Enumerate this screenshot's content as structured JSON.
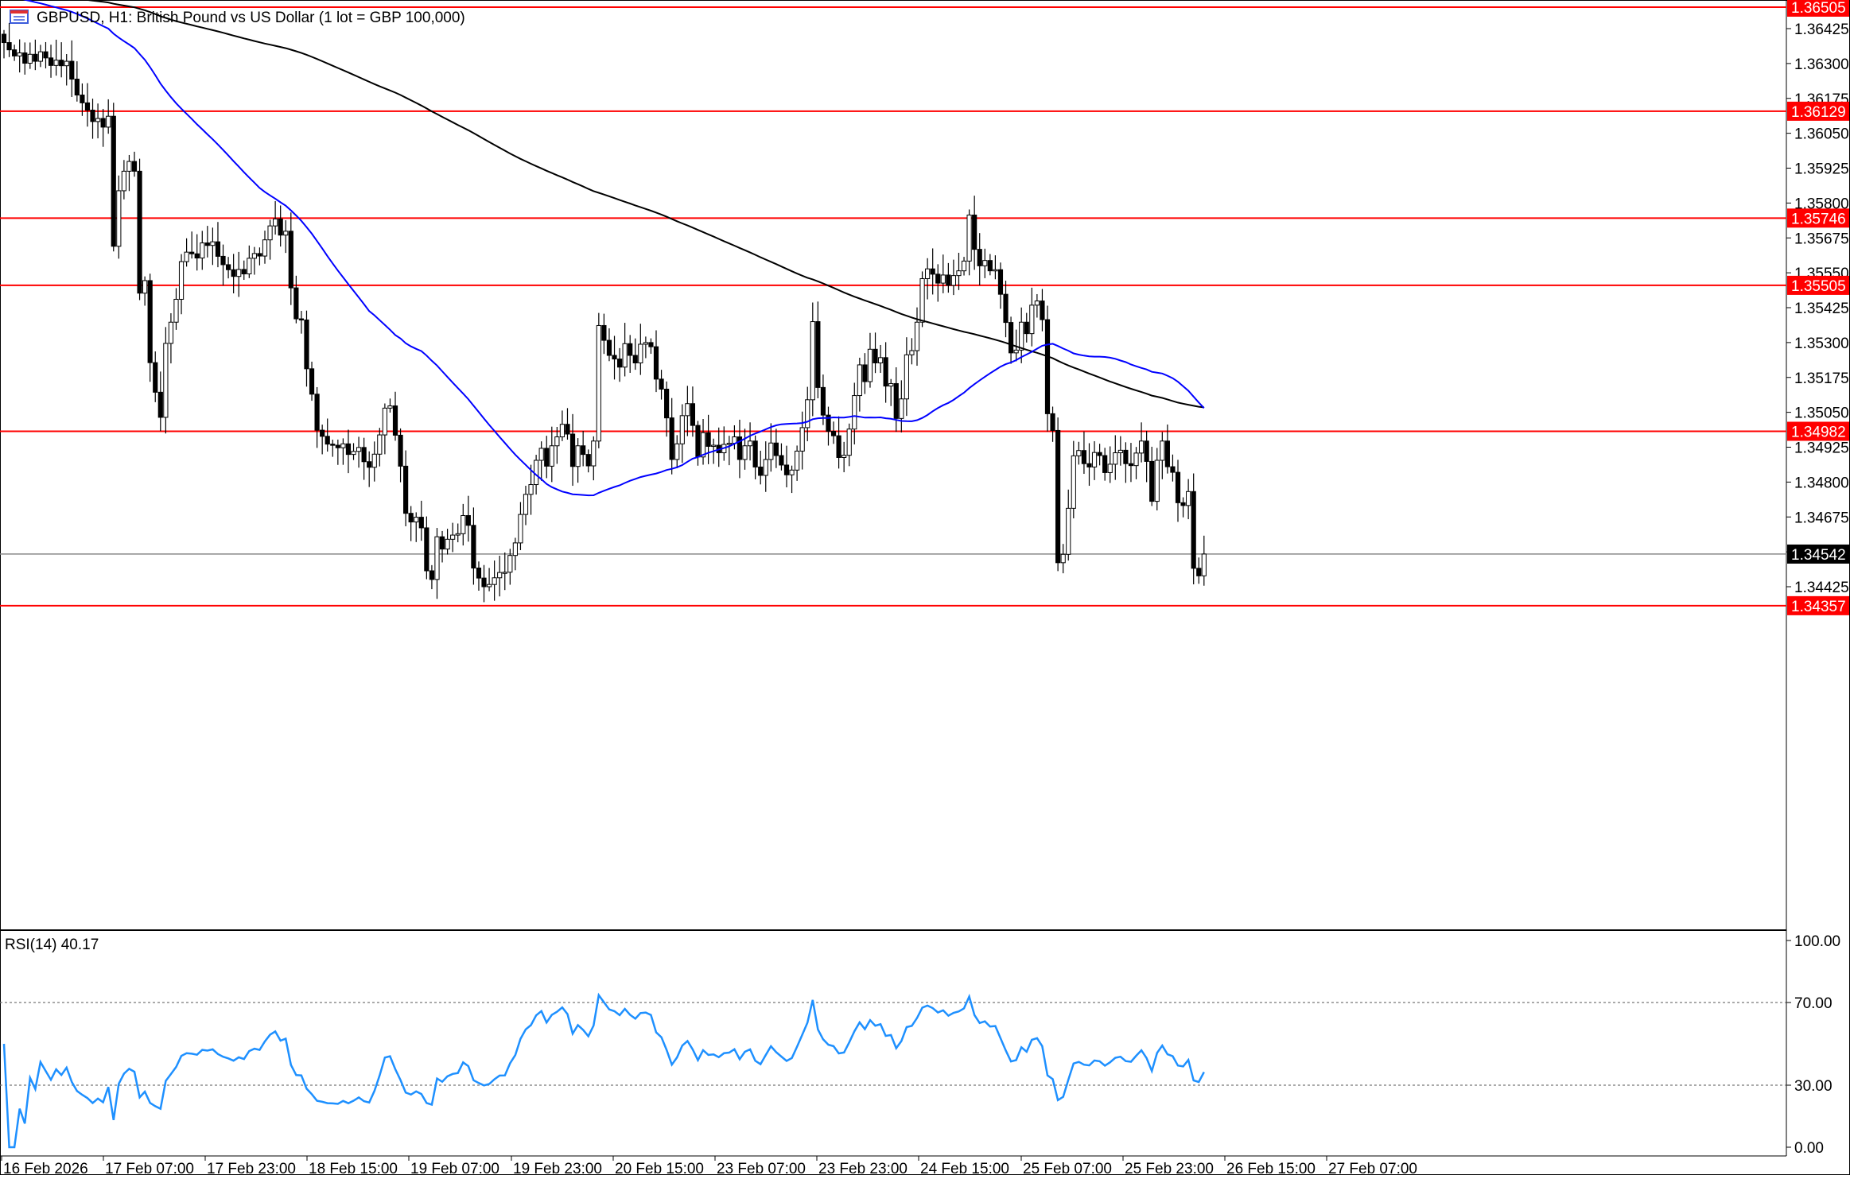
{
  "header": {
    "symbol_title": "GBPUSD, H1:  British Pound vs US Dollar (1 lot = GBP 100,000)",
    "icon": "chart-window-icon"
  },
  "indicator": {
    "label": "RSI(14) 40.17",
    "levels": [
      70,
      30
    ],
    "axis_labels": [
      "100.00",
      "70.00",
      "30.00",
      "0.00"
    ]
  },
  "price_axis": {
    "labels": [
      "1.36425",
      "1.36300",
      "1.36175",
      "1.36050",
      "1.35925",
      "1.35800",
      "1.35675",
      "1.35550",
      "1.35425",
      "1.35300",
      "1.35175",
      "1.35050",
      "1.34925",
      "1.34800",
      "1.34675",
      "1.34550",
      "1.34425"
    ],
    "current_price": "1.34542"
  },
  "time_axis": {
    "labels": [
      "16 Feb 2026",
      "17 Feb 07:00",
      "17 Feb 23:00",
      "18 Feb 15:00",
      "19 Feb 07:00",
      "19 Feb 23:00",
      "20 Feb 15:00",
      "23 Feb 07:00",
      "23 Feb 23:00",
      "24 Feb 15:00",
      "25 Feb 07:00",
      "25 Feb 23:00",
      "26 Feb 15:00",
      "27 Feb 07:00"
    ]
  },
  "horizontal_levels": [
    {
      "price": "1.36505"
    },
    {
      "price": "1.36129"
    },
    {
      "price": "1.35746"
    },
    {
      "price": "1.35505"
    },
    {
      "price": "1.34982"
    },
    {
      "price": "1.34357"
    }
  ],
  "colors": {
    "level_line": "#ff0000",
    "level_tag_bg": "#ff0000",
    "current_tag_bg": "#000000",
    "ma_fast": "#0000ff",
    "ma_slow": "#000000",
    "rsi_line": "#1e90ff",
    "candle_bull": "#ffffff",
    "candle_bear": "#000000"
  },
  "chart_data": {
    "type": "candlestick",
    "symbol": "GBPUSD",
    "timeframe": "H1",
    "ylim": [
      1.3428,
      1.3655
    ],
    "rsi_ylim": [
      0,
      100
    ],
    "closes": [
      1.36375,
      1.36349,
      1.36327,
      1.36338,
      1.36301,
      1.36333,
      1.36308,
      1.36342,
      1.3632,
      1.36293,
      1.36312,
      1.36292,
      1.36308,
      1.36244,
      1.36187,
      1.36159,
      1.36133,
      1.36092,
      1.36103,
      1.36072,
      1.36111,
      1.35645,
      1.35844,
      1.35914,
      1.35949,
      1.35914,
      1.35477,
      1.35522,
      1.35228,
      1.35122,
      1.35032,
      1.35297,
      1.35373,
      1.35455,
      1.3559,
      1.35624,
      1.35618,
      1.35603,
      1.35657,
      1.35648,
      1.35661,
      1.35609,
      1.35579,
      1.35561,
      1.35537,
      1.35562,
      1.35546,
      1.35602,
      1.35619,
      1.3561,
      1.35668,
      1.35718,
      1.35743,
      1.35685,
      1.35699,
      1.35496,
      1.35385,
      1.35381,
      1.35206,
      1.35115,
      1.34986,
      1.34964,
      1.34936,
      1.34932,
      1.34923,
      1.34937,
      1.34899,
      1.3491,
      1.34924,
      1.34873,
      1.34853,
      1.349,
      1.34969,
      1.35065,
      1.35073,
      1.34968,
      1.34857,
      1.34688,
      1.34657,
      1.34674,
      1.34636,
      1.34482,
      1.34451,
      1.34604,
      1.3456,
      1.34595,
      1.3461,
      1.34615,
      1.3468,
      1.34645,
      1.34492,
      1.34456,
      1.34425,
      1.34433,
      1.34457,
      1.34476,
      1.34477,
      1.34537,
      1.34582,
      1.34684,
      1.34756,
      1.34791,
      1.34878,
      1.34921,
      1.34857,
      1.3493,
      1.34962,
      1.35007,
      1.34972,
      1.34856,
      1.3493,
      1.34899,
      1.34858,
      1.34947,
      1.35361,
      1.35308,
      1.35254,
      1.35241,
      1.35212,
      1.35296,
      1.35254,
      1.35227,
      1.35294,
      1.353,
      1.35285,
      1.35169,
      1.35133,
      1.3503,
      1.34881,
      1.34937,
      1.35038,
      1.35081,
      1.35003,
      1.3489,
      1.34977,
      1.34928,
      1.34932,
      1.34905,
      1.34935,
      1.34939,
      1.34962,
      1.34881,
      1.3493,
      1.34947,
      1.34854,
      1.34824,
      1.34881,
      1.3494,
      1.34895,
      1.34861,
      1.34826,
      1.34843,
      1.34911,
      1.34995,
      1.35095,
      1.35375,
      1.35139,
      1.3504,
      1.34982,
      1.34966,
      1.34888,
      1.34896,
      1.3499,
      1.3511,
      1.3522,
      1.3516,
      1.35276,
      1.35227,
      1.35246,
      1.35144,
      1.35153,
      1.35028,
      1.35098,
      1.35256,
      1.35271,
      1.35373,
      1.35529,
      1.35564,
      1.35545,
      1.35513,
      1.35542,
      1.35505,
      1.3554,
      1.35557,
      1.35592,
      1.35757,
      1.35634,
      1.35575,
      1.35594,
      1.35557,
      1.35561,
      1.35473,
      1.35372,
      1.35263,
      1.35273,
      1.35373,
      1.35332,
      1.35434,
      1.35449,
      1.35382,
      1.35045,
      1.34985,
      1.34511,
      1.34541,
      1.34706,
      1.34894,
      1.34913,
      1.34866,
      1.34854,
      1.34906,
      1.34895,
      1.34834,
      1.34864,
      1.34905,
      1.34914,
      1.34866,
      1.34859,
      1.34904,
      1.34947,
      1.34874,
      1.34731,
      1.34878,
      1.34947,
      1.34855,
      1.34835,
      1.34726,
      1.34716,
      1.34766,
      1.34491,
      1.34464,
      1.34542
    ],
    "ma_fast_label": "",
    "ma_slow_label": ""
  }
}
